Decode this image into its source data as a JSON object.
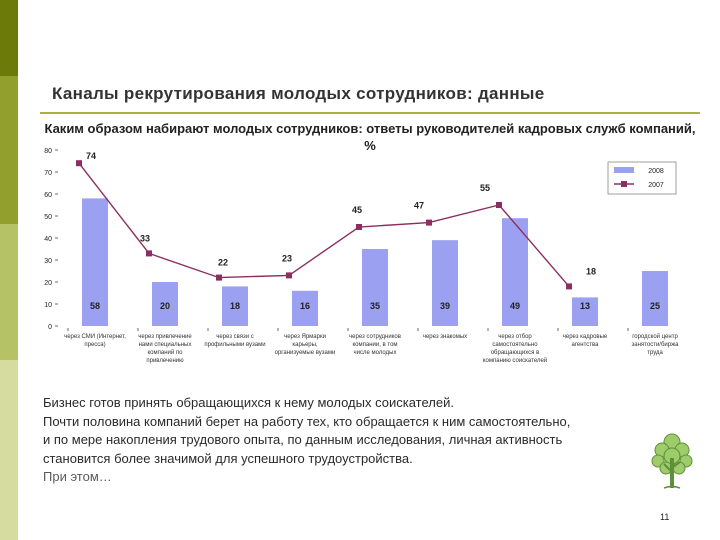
{
  "slide": {
    "title": "Каналы рекрутирования молодых сотрудников: данные",
    "page_number": "11",
    "body": {
      "line1": "Бизнес готов принять обращающихся к нему молодых соискателей.",
      "line2": "Почти половина компаний берет на работу тех, кто обращается к ним самостоятельно,",
      "line3": "и по мере накопления трудового опыта, по данным исследования, личная активность",
      "line4": "становится более значимой для успешного трудоустройства.",
      "line5": "При этом…"
    }
  },
  "chart_data": {
    "type": "bar",
    "title": "Каким образом набирают молодых сотрудников: ответы руководителей кадровых служб компаний, %",
    "ylim": [
      0,
      80
    ],
    "yticks": [
      "0",
      "10",
      "20",
      "30",
      "40",
      "50",
      "60",
      "70",
      "80"
    ],
    "categories": [
      "через СМИ (Интернет, пресса)",
      "через привлечение нами специальных компаний по привлечению",
      "через связи с профильными вузами",
      "через Ярмарки карьеры, организуемые вузами",
      "через сотрудников компании, в том числе молодых",
      "через знакомых",
      "через отбор самостоятельно обращающихся в компанию соискателей",
      "через кадровые агентства",
      "городской центр занятости/биржа труда"
    ],
    "series": [
      {
        "name": "2008",
        "type": "bar",
        "color": "#9ba0f0",
        "values": [
          58,
          20,
          18,
          16,
          35,
          39,
          49,
          13,
          25
        ]
      },
      {
        "name": "2007",
        "type": "line",
        "color": "#8b2f62",
        "values": [
          74,
          33,
          22,
          23,
          45,
          47,
          55,
          18,
          null
        ]
      }
    ],
    "legend_position": "top-right"
  }
}
